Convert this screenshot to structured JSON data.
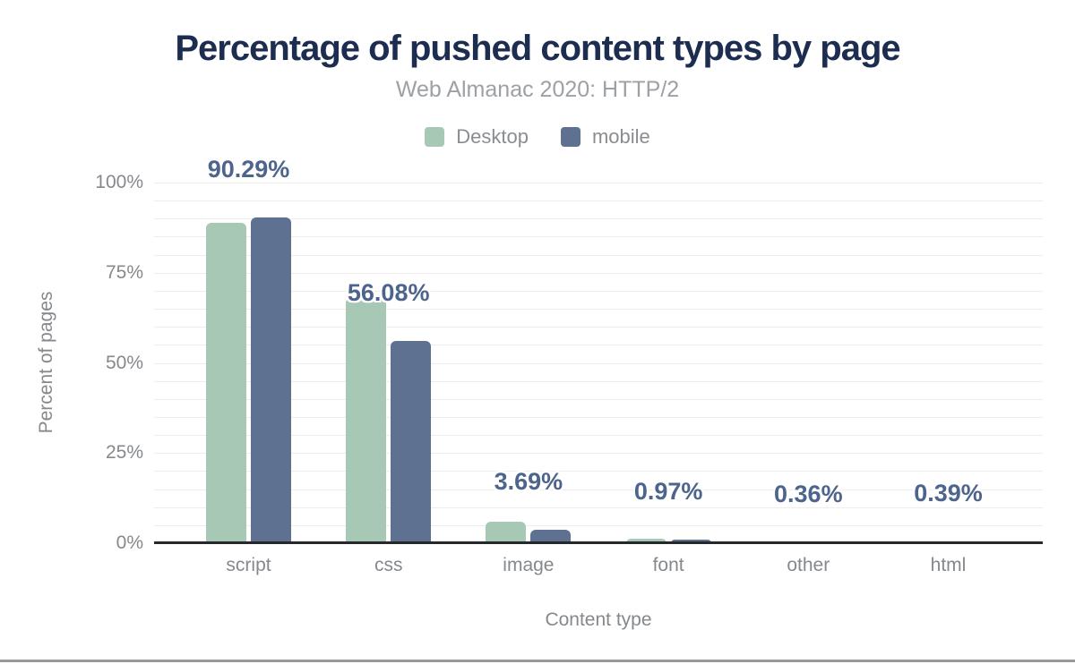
{
  "title": "Percentage of pushed content types by page",
  "subtitle": "Web Almanac 2020: HTTP/2",
  "legend": [
    {
      "label": "Desktop",
      "color": "#a7c8b5"
    },
    {
      "label": "mobile",
      "color": "#5f7190"
    }
  ],
  "colors": {
    "title": "#1d2d50",
    "subtitle_gray": "#9da1a5",
    "axis_gray": "#85888c",
    "desktop_bar": "#a7c8b5",
    "mobile_bar": "#5f7190",
    "value_label": "#4d648c",
    "gridline": "#ededed",
    "axis_line": "#26282b"
  },
  "chart_data": {
    "type": "bar",
    "title": "Percentage of pushed content types by page",
    "subtitle": "Web Almanac 2020: HTTP/2",
    "xlabel": "Content type",
    "ylabel": "Percent of pages",
    "categories": [
      "script",
      "css",
      "image",
      "font",
      "other",
      "html"
    ],
    "series": [
      {
        "name": "Desktop",
        "color": "#a7c8b5",
        "values": [
          88.9,
          68.0,
          5.9,
          1.2,
          0.55,
          0.5
        ]
      },
      {
        "name": "mobile",
        "color": "#5f7190",
        "values": [
          90.29,
          56.08,
          3.69,
          0.97,
          0.36,
          0.39
        ]
      }
    ],
    "value_labels": {
      "series": "mobile",
      "texts": [
        "90.29%",
        "56.08%",
        "3.69%",
        "0.97%",
        "0.36%",
        "0.39%"
      ]
    },
    "ylim": [
      0,
      100
    ],
    "ytick_labels": [
      "0%",
      "25%",
      "50%",
      "75%",
      "100%"
    ],
    "ytick_values": [
      0,
      25,
      50,
      75,
      100
    ],
    "grid_step": 5,
    "grid": "horizontal",
    "legend_position": "top"
  }
}
